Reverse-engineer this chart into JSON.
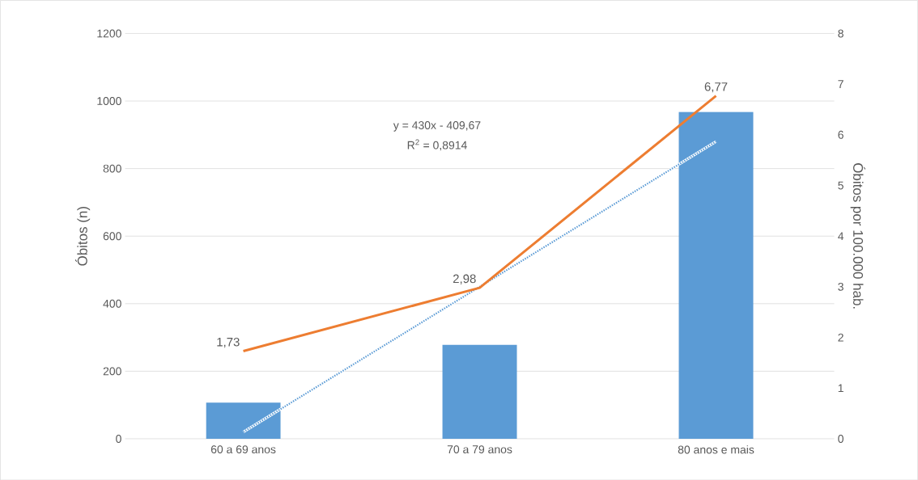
{
  "chart_data": {
    "type": "bar",
    "categories": [
      "60 a 69 anos",
      "70 a 79 anos",
      "80 anos e mais"
    ],
    "series": [
      {
        "color": "#5b9bd5",
        "values": [
          107,
          278,
          968
        ]
      },
      {
        "type": "line",
        "axis": "y2",
        "color": "#ed7d31",
        "values": [
          1.73,
          2.98,
          6.77
        ],
        "value_labels": [
          "1,73",
          "2,98",
          "6,77"
        ],
        "marker": "none",
        "line_style": "solid"
      },
      {
        "type": "line",
        "color": "#5b9bd5",
        "values": [
          20,
          450,
          880
        ],
        "marker": "none",
        "line_style": "dotted"
      }
    ],
    "ylabel": "Óbitos (n)",
    "y2label": "Óbitos por 100.000 hab.",
    "ylim": [
      0,
      1200
    ],
    "yticks": [
      0,
      200,
      400,
      600,
      800,
      1000,
      1200
    ],
    "y2lim": [
      0,
      8
    ],
    "y2ticks": [
      0,
      1,
      2,
      3,
      4,
      5,
      6,
      7,
      8
    ],
    "annotations": [
      "y = 430x - 409,67",
      "R$^{2}$ = 0,8914"
    ],
    "grid": "y"
  }
}
